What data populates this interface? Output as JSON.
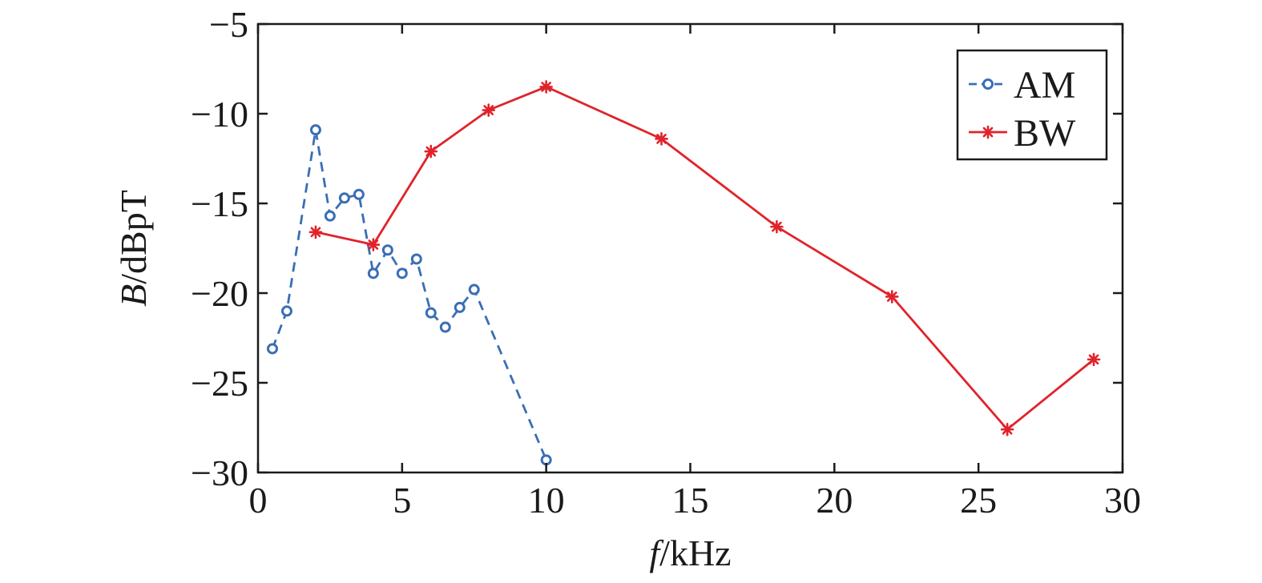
{
  "chart_data": {
    "type": "line",
    "title": "",
    "xlabel_italic": "f",
    "xlabel_unit": "/kHz",
    "ylabel_italic": "B",
    "ylabel_unit": "/dBpT",
    "xlim": [
      0,
      30
    ],
    "ylim": [
      -30,
      -5
    ],
    "xticks": [
      0,
      5,
      10,
      15,
      20,
      25,
      30
    ],
    "yticks": [
      -5,
      -10,
      -15,
      -20,
      -25,
      -30
    ],
    "xtick_labels": [
      "0",
      "5",
      "10",
      "15",
      "20",
      "25",
      "30"
    ],
    "ytick_labels": [
      "−5",
      "−10",
      "−15",
      "−20",
      "−25",
      "−30"
    ],
    "grid": false,
    "legend_position": "top-right",
    "series": [
      {
        "name": "AM",
        "color": "#3a6eb5",
        "line_style": "dashed",
        "marker": "circle",
        "x": [
          0.5,
          1,
          2,
          2.5,
          3,
          3.5,
          4,
          4.5,
          5,
          5.5,
          6,
          6.5,
          7,
          7.5,
          10
        ],
        "y": [
          -23.1,
          -21.0,
          -10.9,
          -15.7,
          -14.7,
          -14.5,
          -18.9,
          -17.6,
          -18.9,
          -18.1,
          -21.1,
          -21.9,
          -20.8,
          -19.8,
          -29.3
        ]
      },
      {
        "name": "BW",
        "color": "#e0232b",
        "line_style": "solid",
        "marker": "asterisk",
        "x": [
          2,
          4,
          6,
          8,
          10,
          14,
          18,
          22,
          26,
          29
        ],
        "y": [
          -16.6,
          -17.3,
          -12.1,
          -9.8,
          -8.5,
          -11.4,
          -16.3,
          -20.2,
          -27.6,
          -23.7
        ]
      }
    ]
  }
}
